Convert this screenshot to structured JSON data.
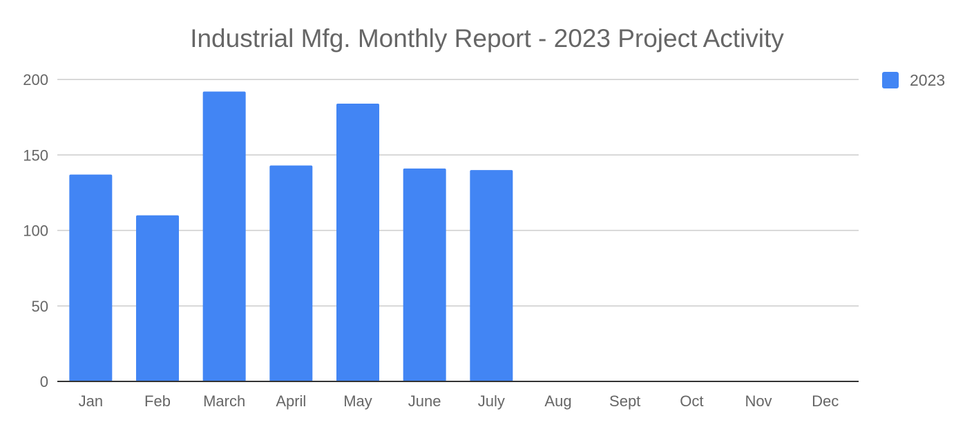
{
  "chart_data": {
    "type": "bar",
    "title": "Industrial Mfg. Monthly Report - 2023 Project Activity",
    "xlabel": "",
    "ylabel": "",
    "categories": [
      "Jan",
      "Feb",
      "March",
      "April",
      "May",
      "June",
      "July",
      "Aug",
      "Sept",
      "Oct",
      "Nov",
      "Dec"
    ],
    "series": [
      {
        "name": "2023",
        "color": "#4285f4",
        "values": [
          137,
          110,
          192,
          143,
          184,
          141,
          140,
          null,
          null,
          null,
          null,
          null
        ]
      }
    ],
    "ylim": [
      0,
      200
    ],
    "yticks": [
      0,
      50,
      100,
      150,
      200
    ],
    "grid": true,
    "legend_position": "top-right"
  },
  "colors": {
    "title": "#666666",
    "tick_label": "#666666",
    "gridline": "#cccccc",
    "axis": "#333333"
  }
}
